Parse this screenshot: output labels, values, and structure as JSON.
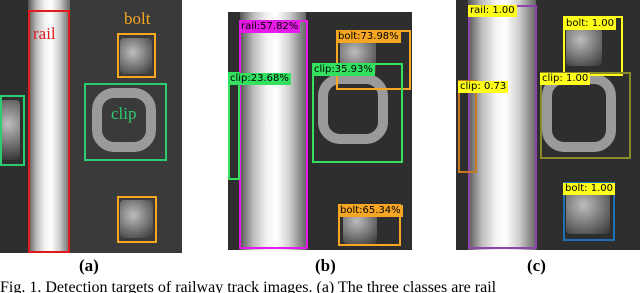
{
  "panels": [
    {
      "label": "(a)",
      "boxes": [
        "rail",
        "bolt",
        "clip"
      ]
    },
    {
      "label": "(b)",
      "boxes": [
        "rail:57.82%",
        "bolt:73.98%",
        "clip:23.68%",
        "clip:35.93%",
        "bolt:65.34%"
      ]
    },
    {
      "label": "(c)",
      "boxes": [
        "rail: 1.00",
        "bolt: 1.00",
        "clip: 0.73",
        "clip: 1.00",
        "bolt: 1.00"
      ]
    }
  ],
  "caption": "Fig. 1.  Detection targets of railway track images. (a) The three classes are rail"
}
